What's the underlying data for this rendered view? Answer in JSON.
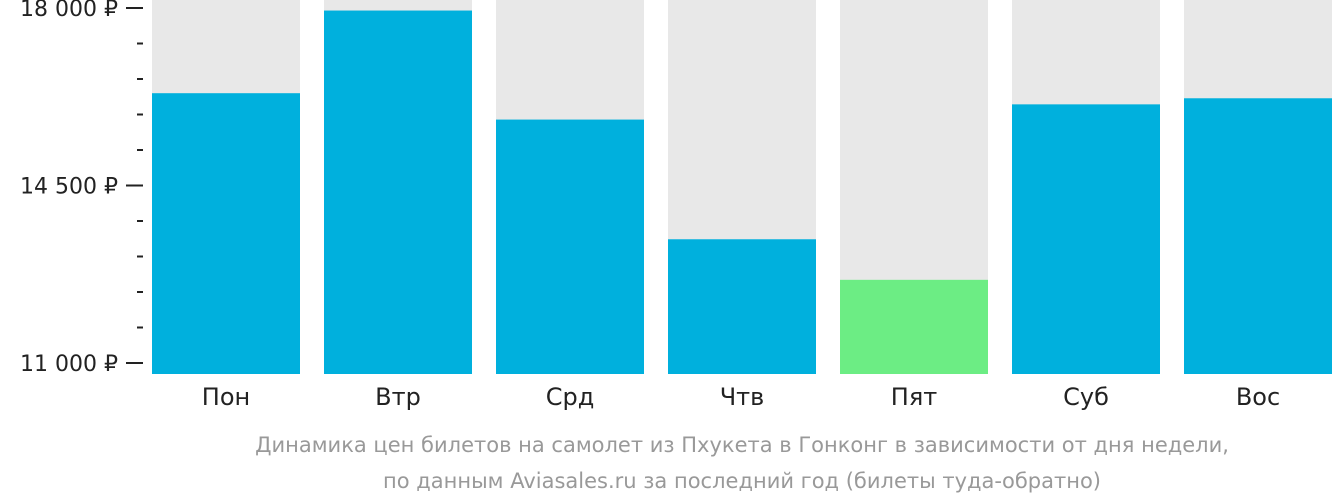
{
  "chart_data": {
    "type": "bar",
    "categories": [
      "Пон",
      "Втр",
      "Срд",
      "Чтв",
      "Пят",
      "Суб",
      "Вос"
    ],
    "values": [
      16320,
      17950,
      15800,
      13440,
      12640,
      16100,
      16220
    ],
    "highlight_index": 4,
    "ylim": [
      11000,
      18000
    ],
    "yticks": [
      {
        "value": 18000,
        "label": "18 000 ₽"
      },
      {
        "value": 14500,
        "label": "14 500 ₽"
      },
      {
        "value": 11000,
        "label": "11 000 ₽"
      }
    ],
    "minor_ticks_per_interval": 4,
    "colors": {
      "bar": "#00b0dd",
      "highlight": "#6ced84",
      "background_bar": "#e8e8e8",
      "axis": "#222222",
      "caption": "#999999"
    },
    "caption": [
      "Динамика цен билетов на самолет из Пхукета в Гонконг в зависимости от дня недели,",
      "по данным Aviasales.ru за последний год (билеты туда-обратно)"
    ]
  }
}
